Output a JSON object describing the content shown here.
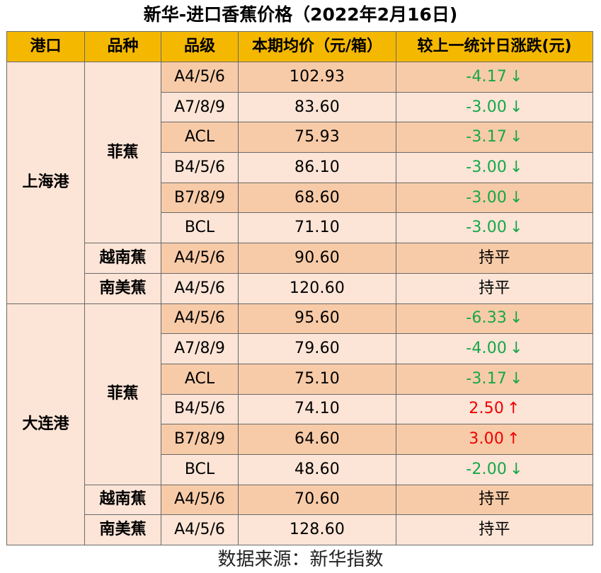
{
  "title": "新华-进口香蕉价格（2022年2月16日)",
  "headers": [
    "港口",
    "品种",
    "品级",
    "本期均价（元/箱）",
    "较上一统计日涨跌(元)"
  ],
  "ports": [
    {
      "name": "上海港",
      "groups": [
        {
          "variety": "菲蕉",
          "rows": [
            {
              "grade": "A4/5/6",
              "price": "102.93",
              "change": "-4.17",
              "dir": "down"
            },
            {
              "grade": "A7/8/9",
              "price": "83.60",
              "change": "-3.00",
              "dir": "down"
            },
            {
              "grade": "ACL",
              "price": "75.93",
              "change": "-3.17",
              "dir": "down"
            },
            {
              "grade": "B4/5/6",
              "price": "86.10",
              "change": "-3.00",
              "dir": "down"
            },
            {
              "grade": "B7/8/9",
              "price": "68.60",
              "change": "-3.00",
              "dir": "down"
            },
            {
              "grade": "BCL",
              "price": "71.10",
              "change": "-3.00",
              "dir": "down"
            }
          ]
        },
        {
          "variety": "越南蕉",
          "rows": [
            {
              "grade": "A4/5/6",
              "price": "90.60",
              "change": "持平",
              "dir": "flat"
            }
          ]
        },
        {
          "variety": "南美蕉",
          "rows": [
            {
              "grade": "A4/5/6",
              "price": "120.60",
              "change": "持平",
              "dir": "flat"
            }
          ]
        }
      ]
    },
    {
      "name": "大连港",
      "groups": [
        {
          "variety": "菲蕉",
          "rows": [
            {
              "grade": "A4/5/6",
              "price": "95.60",
              "change": "-6.33",
              "dir": "down"
            },
            {
              "grade": "A7/8/9",
              "price": "79.60",
              "change": "-4.00",
              "dir": "down"
            },
            {
              "grade": "ACL",
              "price": "75.10",
              "change": "-3.17",
              "dir": "down"
            },
            {
              "grade": "B4/5/6",
              "price": "74.10",
              "change": "2.50",
              "dir": "up"
            },
            {
              "grade": "B7/8/9",
              "price": "64.60",
              "change": "3.00",
              "dir": "up"
            },
            {
              "grade": "BCL",
              "price": "48.60",
              "change": "-2.00",
              "dir": "down"
            }
          ]
        },
        {
          "variety": "越南蕉",
          "rows": [
            {
              "grade": "A4/5/6",
              "price": "70.60",
              "change": "持平",
              "dir": "flat"
            }
          ]
        },
        {
          "variety": "南美蕉",
          "rows": [
            {
              "grade": "A4/5/6",
              "price": "128.60",
              "change": "持平",
              "dir": "flat"
            }
          ]
        }
      ]
    }
  ],
  "arrows": {
    "down": "↓",
    "up": "↑"
  },
  "colors": {
    "header": "#f5b800",
    "row_dark": "#f8cba8",
    "row_light": "#fce4d6",
    "down": "#14a84a",
    "up": "#ee0000"
  },
  "source": "数据来源：新华指数"
}
